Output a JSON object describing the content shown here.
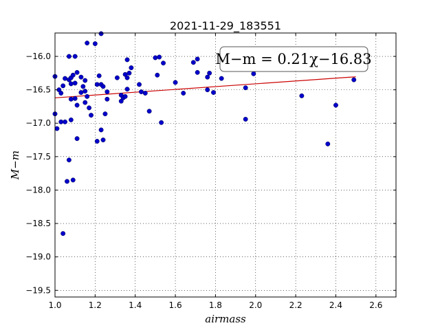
{
  "chart_data": {
    "type": "scatter",
    "title": "2021-11-29_183551",
    "xlabel": "airmass",
    "ylabel": "M−m",
    "xlim": [
      1.0,
      2.7
    ],
    "ylim": [
      -19.6,
      -15.65
    ],
    "xticks": [
      1.0,
      1.2,
      1.4,
      1.6,
      1.8,
      2.0,
      2.2,
      2.4,
      2.6
    ],
    "xtick_labels": [
      "1.0",
      "1.2",
      "1.4",
      "1.6",
      "1.8",
      "2.0",
      "2.2",
      "2.4",
      "2.6"
    ],
    "yticks": [
      -16.0,
      -16.5,
      -17.0,
      -17.5,
      -18.0,
      -18.5,
      -19.0,
      -19.5
    ],
    "ytick_labels": [
      "−16.0",
      "−16.5",
      "−17.0",
      "−17.5",
      "−18.0",
      "−18.5",
      "−19.0",
      "−19.5"
    ],
    "grid": true,
    "annotation": "M−m = 0.21χ−16.83",
    "point_color": "#0000cc",
    "fit_color": "#cc0000",
    "fit": {
      "slope": 0.21,
      "intercept": -16.83,
      "x_range": [
        1.0,
        2.5
      ]
    },
    "points": [
      [
        1.0,
        -16.3
      ],
      [
        1.0,
        -16.86
      ],
      [
        1.01,
        -17.08
      ],
      [
        1.02,
        -16.5
      ],
      [
        1.03,
        -16.55
      ],
      [
        1.03,
        -16.98
      ],
      [
        1.04,
        -16.44
      ],
      [
        1.04,
        -18.65
      ],
      [
        1.05,
        -16.33
      ],
      [
        1.05,
        -16.98
      ],
      [
        1.06,
        -17.87
      ],
      [
        1.07,
        -16.0
      ],
      [
        1.07,
        -16.35
      ],
      [
        1.07,
        -17.55
      ],
      [
        1.08,
        -16.41
      ],
      [
        1.08,
        -16.95
      ],
      [
        1.08,
        -16.64
      ],
      [
        1.08,
        -16.32
      ],
      [
        1.09,
        -17.85
      ],
      [
        1.09,
        -16.28
      ],
      [
        1.1,
        -16.0
      ],
      [
        1.1,
        -16.63
      ],
      [
        1.1,
        -16.4
      ],
      [
        1.11,
        -16.24
      ],
      [
        1.11,
        -17.23
      ],
      [
        1.11,
        -16.73
      ],
      [
        1.13,
        -16.31
      ],
      [
        1.13,
        -16.54
      ],
      [
        1.14,
        -16.45
      ],
      [
        1.15,
        -16.36
      ],
      [
        1.15,
        -16.52
      ],
      [
        1.15,
        -16.69
      ],
      [
        1.16,
        -16.6
      ],
      [
        1.16,
        -15.8
      ],
      [
        1.17,
        -16.77
      ],
      [
        1.18,
        -16.88
      ],
      [
        1.2,
        -15.81
      ],
      [
        1.21,
        -16.42
      ],
      [
        1.21,
        -17.27
      ],
      [
        1.22,
        -16.29
      ],
      [
        1.23,
        -16.42
      ],
      [
        1.23,
        -17.1
      ],
      [
        1.23,
        -15.66
      ],
      [
        1.24,
        -16.45
      ],
      [
        1.24,
        -17.25
      ],
      [
        1.25,
        -16.86
      ],
      [
        1.26,
        -16.53
      ],
      [
        1.26,
        -16.64
      ],
      [
        1.31,
        -16.32
      ],
      [
        1.33,
        -16.67
      ],
      [
        1.33,
        -16.58
      ],
      [
        1.34,
        -16.62
      ],
      [
        1.35,
        -16.6
      ],
      [
        1.35,
        -16.27
      ],
      [
        1.36,
        -16.32
      ],
      [
        1.36,
        -16.05
      ],
      [
        1.36,
        -16.49
      ],
      [
        1.37,
        -16.25
      ],
      [
        1.38,
        -16.17
      ],
      [
        1.42,
        -16.42
      ],
      [
        1.43,
        -16.53
      ],
      [
        1.45,
        -16.55
      ],
      [
        1.47,
        -16.82
      ],
      [
        1.5,
        -16.02
      ],
      [
        1.51,
        -16.28
      ],
      [
        1.52,
        -16.01
      ],
      [
        1.53,
        -16.99
      ],
      [
        1.54,
        -16.1
      ],
      [
        1.6,
        -16.39
      ],
      [
        1.64,
        -16.55
      ],
      [
        1.69,
        -16.09
      ],
      [
        1.71,
        -16.04
      ],
      [
        1.71,
        -16.24
      ],
      [
        1.76,
        -16.5
      ],
      [
        1.76,
        -16.31
      ],
      [
        1.77,
        -16.25
      ],
      [
        1.79,
        -16.54
      ],
      [
        1.83,
        -16.33
      ],
      [
        1.95,
        -16.47
      ],
      [
        1.95,
        -16.94
      ],
      [
        1.99,
        -16.26
      ],
      [
        2.23,
        -16.59
      ],
      [
        2.36,
        -17.31
      ],
      [
        2.4,
        -16.73
      ],
      [
        2.49,
        -16.35
      ]
    ]
  }
}
